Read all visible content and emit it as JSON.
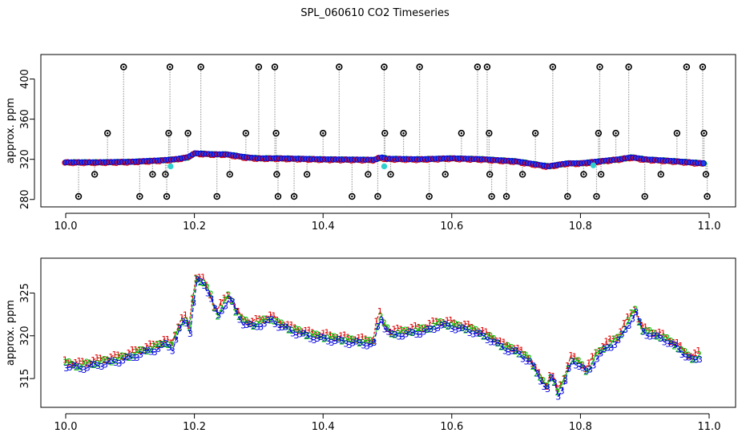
{
  "title": "SPL_060610  CO2 Timeseries",
  "colors": {
    "series1": "#e00000",
    "series2": "#00c000",
    "series3": "#0000e0",
    "fill": "#2040e8",
    "outlier": "#000000",
    "cyan": "#30d0d0",
    "gray": "#a0a0a0"
  },
  "chart_data": [
    {
      "type": "scatter",
      "title": "",
      "xlabel": "",
      "ylabel": "approx. ppm",
      "xlim": [
        10.0,
        11.0
      ],
      "ylim": [
        279,
        418
      ],
      "xticks": [
        10.0,
        10.2,
        10.4,
        10.6,
        10.8,
        11.0
      ],
      "xtick_labels": [
        "10.0",
        "10.2",
        "10.4",
        "10.6",
        "10.8",
        "11.0"
      ],
      "yticks": [
        280,
        320,
        360,
        400
      ],
      "ytick_labels": [
        "280",
        "320",
        "360",
        "400"
      ],
      "grid": false,
      "baseline": [
        [
          10.0,
          317
        ],
        [
          10.05,
          317
        ],
        [
          10.1,
          317.5
        ],
        [
          10.15,
          319
        ],
        [
          10.17,
          320
        ],
        [
          10.19,
          322
        ],
        [
          10.2,
          326
        ],
        [
          10.23,
          325
        ],
        [
          10.25,
          325
        ],
        [
          10.28,
          322
        ],
        [
          10.3,
          321
        ],
        [
          10.33,
          321
        ],
        [
          10.4,
          320
        ],
        [
          10.48,
          319.5
        ],
        [
          10.49,
          322
        ],
        [
          10.5,
          320.5
        ],
        [
          10.55,
          320
        ],
        [
          10.6,
          321
        ],
        [
          10.65,
          320
        ],
        [
          10.7,
          318
        ],
        [
          10.75,
          313
        ],
        [
          10.78,
          316
        ],
        [
          10.8,
          316
        ],
        [
          10.83,
          318
        ],
        [
          10.86,
          320
        ],
        [
          10.88,
          322
        ],
        [
          10.9,
          320
        ],
        [
          10.95,
          318
        ],
        [
          10.99,
          316
        ]
      ],
      "outliers": [
        [
          10.02,
          283
        ],
        [
          10.045,
          305
        ],
        [
          10.065,
          346
        ],
        [
          10.09,
          412
        ],
        [
          10.115,
          283
        ],
        [
          10.135,
          305
        ],
        [
          10.155,
          305
        ],
        [
          10.157,
          283
        ],
        [
          10.162,
          412
        ],
        [
          10.16,
          346
        ],
        [
          10.19,
          346
        ],
        [
          10.21,
          412
        ],
        [
          10.235,
          283
        ],
        [
          10.255,
          305
        ],
        [
          10.28,
          346
        ],
        [
          10.3,
          412
        ],
        [
          10.325,
          412
        ],
        [
          10.327,
          346
        ],
        [
          10.328,
          305
        ],
        [
          10.33,
          283
        ],
        [
          10.355,
          283
        ],
        [
          10.375,
          305
        ],
        [
          10.4,
          346
        ],
        [
          10.425,
          412
        ],
        [
          10.445,
          283
        ],
        [
          10.47,
          305
        ],
        [
          10.485,
          283
        ],
        [
          10.495,
          412
        ],
        [
          10.496,
          346
        ],
        [
          10.505,
          305
        ],
        [
          10.525,
          346
        ],
        [
          10.55,
          412
        ],
        [
          10.565,
          283
        ],
        [
          10.59,
          305
        ],
        [
          10.615,
          346
        ],
        [
          10.64,
          412
        ],
        [
          10.655,
          412
        ],
        [
          10.658,
          346
        ],
        [
          10.659,
          305
        ],
        [
          10.662,
          283
        ],
        [
          10.685,
          283
        ],
        [
          10.71,
          305
        ],
        [
          10.73,
          346
        ],
        [
          10.757,
          412
        ],
        [
          10.78,
          283
        ],
        [
          10.805,
          305
        ],
        [
          10.825,
          283
        ],
        [
          10.83,
          412
        ],
        [
          10.828,
          346
        ],
        [
          10.832,
          305
        ],
        [
          10.855,
          346
        ],
        [
          10.875,
          412
        ],
        [
          10.9,
          283
        ],
        [
          10.925,
          305
        ],
        [
          10.95,
          346
        ],
        [
          10.965,
          412
        ],
        [
          10.99,
          412
        ],
        [
          10.992,
          346
        ],
        [
          10.995,
          305
        ],
        [
          10.997,
          283
        ]
      ],
      "cyan_points": [
        [
          10.163,
          313
        ],
        [
          10.495,
          313
        ],
        [
          10.82,
          314
        ]
      ]
    },
    {
      "type": "line",
      "title": "",
      "xlabel": "",
      "ylabel": "approx. ppm",
      "xlim": [
        10.0,
        11.0
      ],
      "ylim": [
        312.2,
        328.6
      ],
      "xticks": [
        10.0,
        10.2,
        10.4,
        10.6,
        10.8,
        11.0
      ],
      "xtick_labels": [
        "10.0",
        "10.2",
        "10.4",
        "10.6",
        "10.8",
        "11.0"
      ],
      "yticks": [
        315,
        320,
        325
      ],
      "ytick_labels": [
        "315",
        "320",
        "325"
      ],
      "grid": false,
      "series_markers": [
        "1",
        "2",
        "3"
      ],
      "series_offsets": [
        0.6,
        0.3,
        0
      ],
      "base": [
        [
          10.0,
          316.5
        ],
        [
          10.02,
          316.2
        ],
        [
          10.05,
          316.6
        ],
        [
          10.08,
          317.0
        ],
        [
          10.1,
          317.4
        ],
        [
          10.12,
          318.0
        ],
        [
          10.14,
          318.4
        ],
        [
          10.155,
          319.0
        ],
        [
          10.165,
          318.5
        ],
        [
          10.175,
          320.5
        ],
        [
          10.185,
          322.0
        ],
        [
          10.19,
          321.0
        ],
        [
          10.195,
          320.0
        ],
        [
          10.2,
          326.5
        ],
        [
          10.215,
          326.0
        ],
        [
          10.225,
          324.5
        ],
        [
          10.235,
          322.0
        ],
        [
          10.245,
          323.5
        ],
        [
          10.255,
          324.5
        ],
        [
          10.265,
          322.5
        ],
        [
          10.275,
          321.5
        ],
        [
          10.29,
          321.0
        ],
        [
          10.31,
          321.5
        ],
        [
          10.32,
          321.8
        ],
        [
          10.33,
          321.2
        ],
        [
          10.35,
          320.5
        ],
        [
          10.38,
          319.8
        ],
        [
          10.41,
          319.5
        ],
        [
          10.44,
          319.2
        ],
        [
          10.47,
          319.0
        ],
        [
          10.48,
          319.0
        ],
        [
          10.487,
          322.5
        ],
        [
          10.495,
          321.0
        ],
        [
          10.505,
          320.0
        ],
        [
          10.53,
          320.2
        ],
        [
          10.56,
          320.5
        ],
        [
          10.58,
          321.2
        ],
        [
          10.6,
          321.0
        ],
        [
          10.63,
          320.5
        ],
        [
          10.66,
          319.5
        ],
        [
          10.68,
          318.5
        ],
        [
          10.7,
          318.0
        ],
        [
          10.72,
          317.0
        ],
        [
          10.74,
          314.5
        ],
        [
          10.75,
          313.5
        ],
        [
          10.755,
          315.5
        ],
        [
          10.765,
          313.0
        ],
        [
          10.775,
          314.5
        ],
        [
          10.785,
          317.0
        ],
        [
          10.8,
          316.5
        ],
        [
          10.81,
          315.5
        ],
        [
          10.825,
          317.5
        ],
        [
          10.84,
          318.5
        ],
        [
          10.86,
          319.5
        ],
        [
          10.875,
          321.5
        ],
        [
          10.885,
          322.8
        ],
        [
          10.895,
          320.5
        ],
        [
          10.91,
          320.0
        ],
        [
          10.93,
          319.5
        ],
        [
          10.95,
          318.5
        ],
        [
          10.965,
          317.5
        ],
        [
          10.975,
          317.0
        ],
        [
          10.985,
          317.5
        ]
      ]
    }
  ]
}
